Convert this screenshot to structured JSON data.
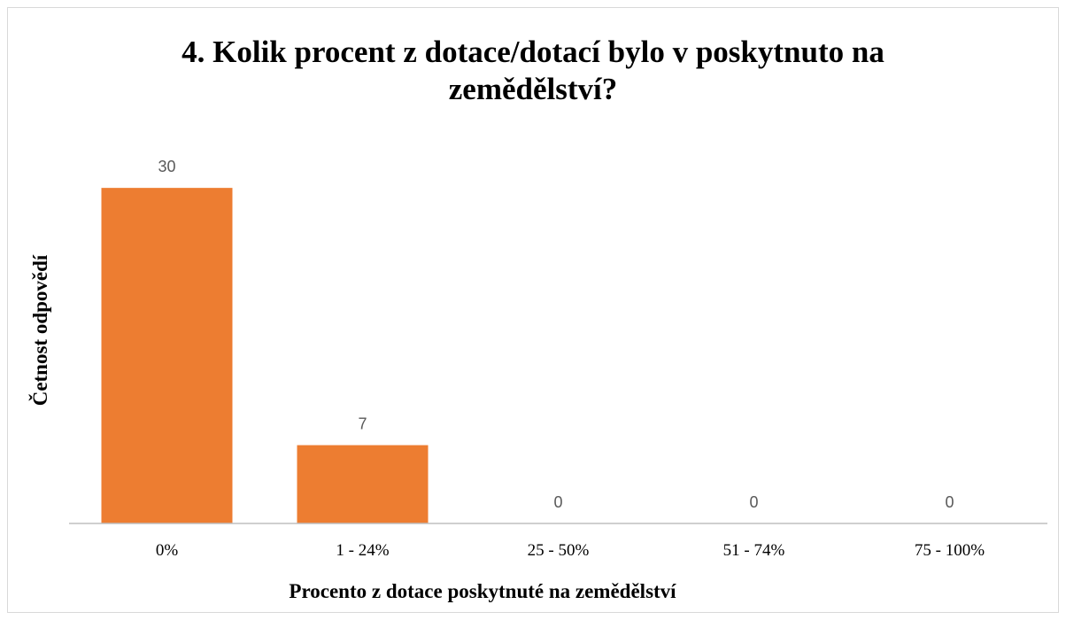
{
  "chart_data": {
    "type": "bar",
    "title": "4. Kolik procent z dotace/dotací bylo v poskytnuto na zemědělství?",
    "x_label": "Procento z dotace poskytnuté na zemědělství",
    "y_label": "Četnost odpovědí",
    "categories": [
      "0%",
      "1 - 24%",
      "25 - 50%",
      "51 - 74%",
      "75 - 100%"
    ],
    "values": [
      30,
      7,
      0,
      0,
      0
    ],
    "color": "#ed7d31",
    "ylim": [
      0,
      35
    ]
  }
}
